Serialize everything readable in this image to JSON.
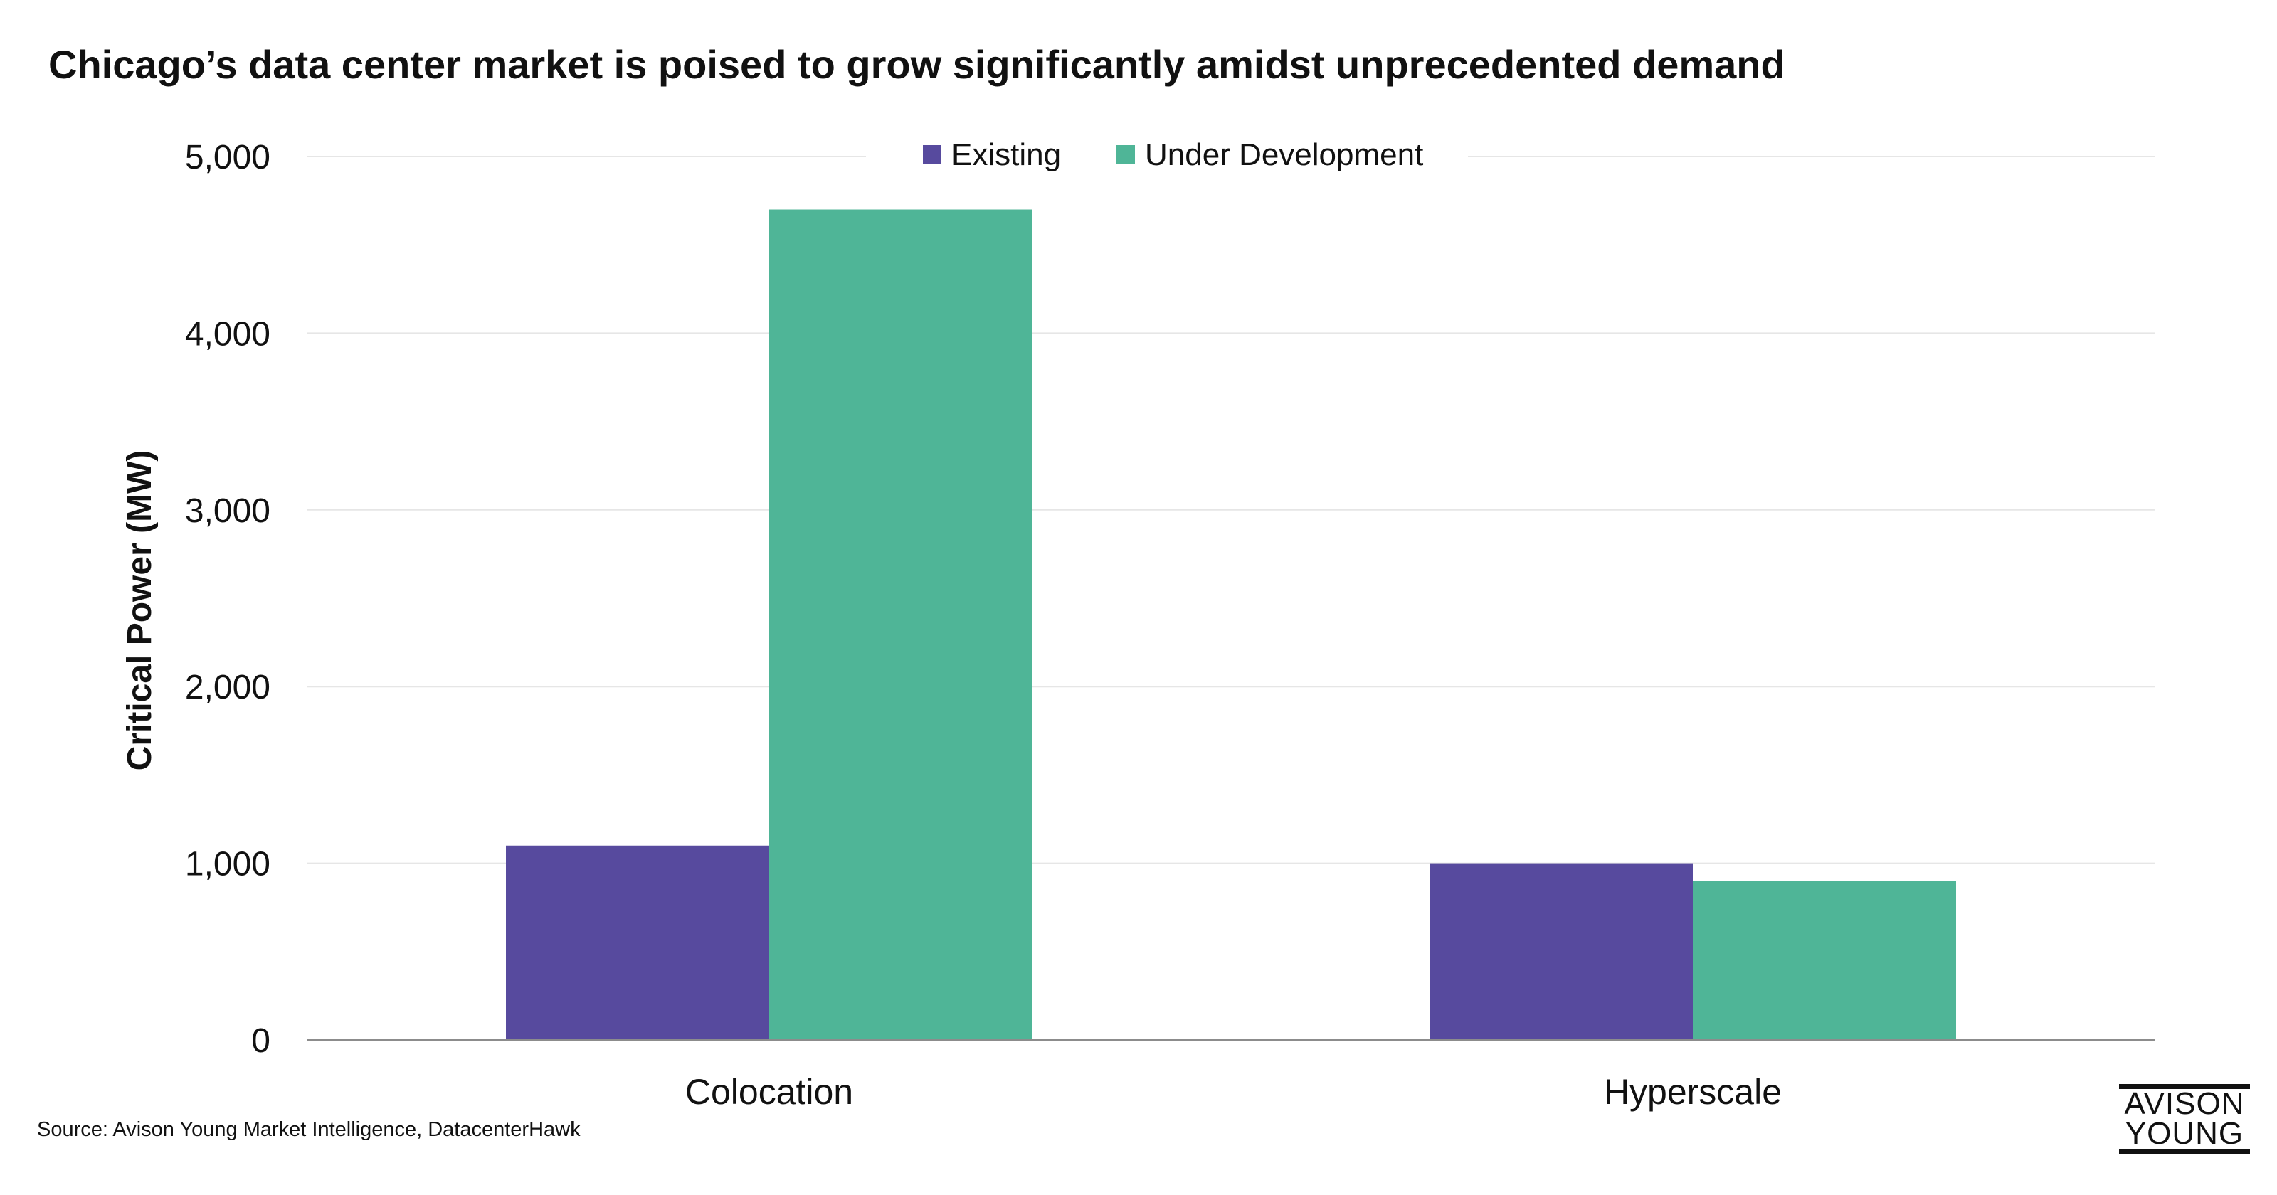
{
  "chart_data": {
    "type": "bar",
    "title": "Chicago’s data center market is poised to grow significantly amidst unprecedented demand",
    "xlabel": "",
    "ylabel": "Critical Power (MW)",
    "categories": [
      "Colocation",
      "Hyperscale"
    ],
    "series": [
      {
        "name": "Existing",
        "values": [
          1100,
          1000
        ],
        "color": "#574A9E"
      },
      {
        "name": "Under Development",
        "values": [
          4700,
          900
        ],
        "color": "#4FB597"
      }
    ],
    "ylim": [
      0,
      5000
    ],
    "yticks": [
      0,
      1000,
      2000,
      3000,
      4000,
      5000
    ],
    "ytick_labels": [
      "0",
      "1,000",
      "2,000",
      "3,000",
      "4,000",
      "5,000"
    ],
    "grid": true,
    "legend_position": "top-center"
  },
  "source": "Source: Avison Young Market Intelligence, DatacenterHawk",
  "brand": {
    "line1": "AVISON",
    "line2": "YOUNG"
  },
  "colors": {
    "grid": "#E6E6E6",
    "axis": "#8C8C8C",
    "text": "#111111"
  }
}
